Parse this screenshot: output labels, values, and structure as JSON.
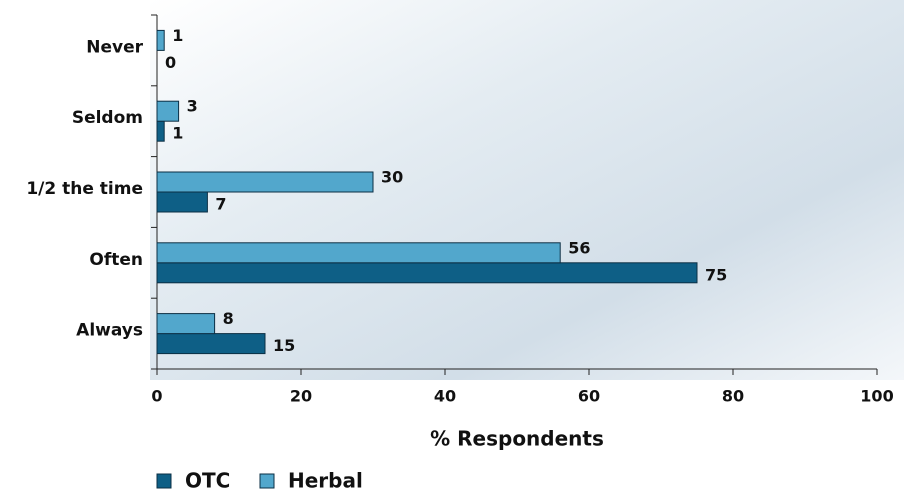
{
  "chart_data": {
    "type": "hbar",
    "categories": [
      "Never",
      "Seldom",
      "1/2 the time",
      "Often",
      "Always"
    ],
    "series": [
      {
        "name": "OTC",
        "color": "#0e5f86",
        "values": [
          0,
          1,
          7,
          75,
          15
        ]
      },
      {
        "name": "Herbal",
        "color": "#52a7cc",
        "values": [
          1,
          3,
          30,
          56,
          8
        ]
      }
    ],
    "x_label": "% Respondents",
    "xlim": [
      0,
      100
    ],
    "xticks": [
      0,
      20,
      40,
      60,
      80,
      100
    ],
    "legend": "bottom-left"
  }
}
